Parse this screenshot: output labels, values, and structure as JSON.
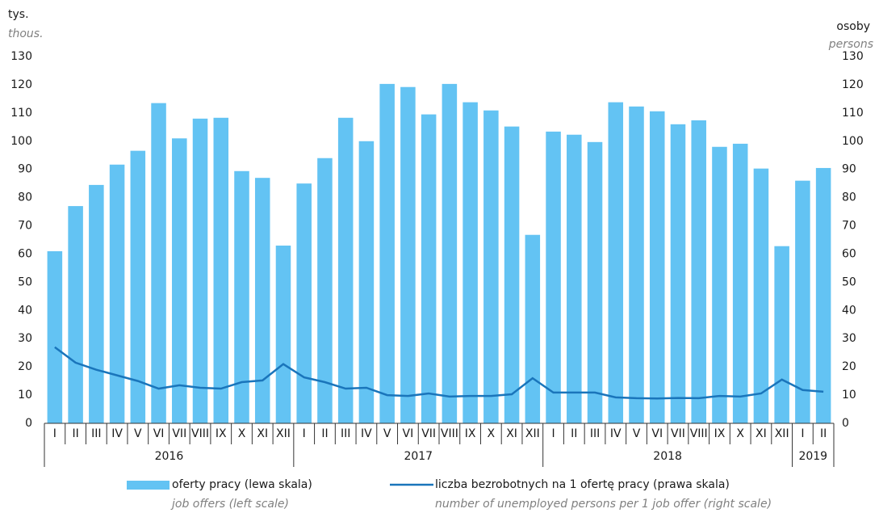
{
  "chart_data": {
    "type": "bar",
    "left_unit": "tys.",
    "left_unit_en": "thous.",
    "right_unit": "osoby",
    "right_unit_en": "persons",
    "categories": [
      "I",
      "II",
      "III",
      "IV",
      "V",
      "VI",
      "VII",
      "VIII",
      "IX",
      "X",
      "XI",
      "XII",
      "I",
      "II",
      "III",
      "IV",
      "V",
      "VI",
      "VII",
      "VIII",
      "IX",
      "X",
      "XI",
      "XII",
      "I",
      "II",
      "III",
      "IV",
      "V",
      "VI",
      "VII",
      "VIII",
      "IX",
      "X",
      "XI",
      "XII",
      "I",
      "II"
    ],
    "years": [
      "2016",
      "2017",
      "2018",
      "2019"
    ],
    "series": [
      {
        "name": "oferty pracy (lewa skala)",
        "name_en": "job offers (left scale)",
        "type": "bar",
        "color": "#63c3f3",
        "values": [
          61,
          77,
          84.5,
          91.7,
          96.6,
          113.5,
          101,
          108,
          108.3,
          89.4,
          87,
          63,
          85,
          94,
          108.3,
          100,
          120.3,
          119.2,
          109.5,
          120.3,
          113.8,
          110.9,
          105.2,
          66.8,
          103.4,
          102.3,
          99.7,
          113.8,
          112.3,
          110.6,
          106,
          107.4,
          98,
          99.1,
          90.3,
          62.8,
          86,
          90.5
        ]
      },
      {
        "name": "liczba bezrobotnych na 1 ofertę pracy (prawa skala)",
        "name_en": "number of unemployed persons per 1 job offer (right scale)",
        "type": "line",
        "color": "#1a75bb",
        "axis": "y2",
        "values": [
          27,
          21.5,
          19,
          17,
          15,
          12.3,
          13.5,
          12.6,
          12.3,
          14.6,
          15.2,
          21,
          16.3,
          14.6,
          12.3,
          12.6,
          10,
          9.7,
          10.6,
          9.5,
          9.7,
          9.7,
          10.3,
          16,
          10.9,
          10.9,
          10.9,
          9.2,
          8.9,
          8.8,
          9,
          8.9,
          9.7,
          9.5,
          10.6,
          15.5,
          11.8,
          11.2
        ]
      }
    ],
    "ylim": [
      0,
      130
    ],
    "yticks": [
      0,
      10,
      20,
      30,
      40,
      50,
      60,
      70,
      80,
      90,
      100,
      110,
      120,
      130
    ],
    "y2lim": [
      0,
      130
    ],
    "y2ticks": [
      0,
      10,
      20,
      30,
      40,
      50,
      60,
      70,
      80,
      90,
      100,
      110,
      120,
      130
    ]
  }
}
